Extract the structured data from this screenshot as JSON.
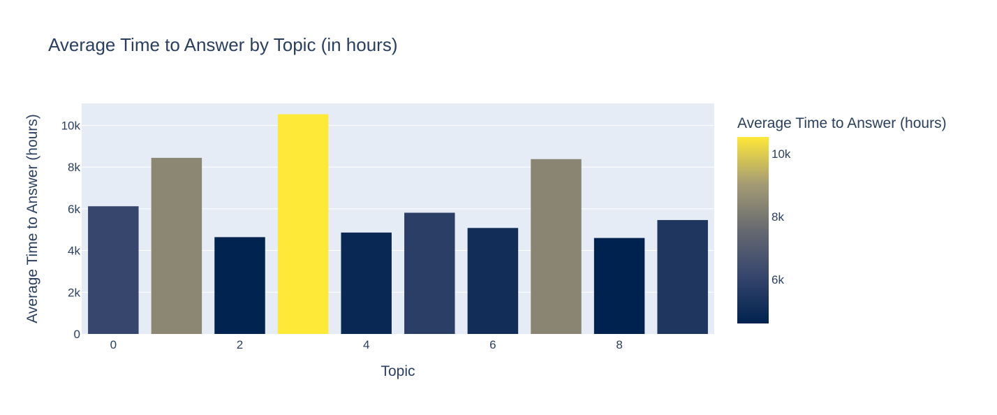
{
  "chart_data": {
    "type": "bar",
    "title": "Average Time to Answer by Topic (in hours)",
    "xlabel": "Topic",
    "ylabel": "Average Time to Answer (hours)",
    "x": [
      0,
      1,
      2,
      3,
      4,
      5,
      6,
      7,
      8,
      9
    ],
    "values": [
      6120,
      8440,
      4640,
      10530,
      4860,
      5810,
      5080,
      8380,
      4600,
      5460
    ],
    "ylim": [
      0,
      11050
    ],
    "xlim": [
      -0.5,
      9.5
    ],
    "x_ticks": [
      0,
      2,
      4,
      6,
      8
    ],
    "x_tick_labels": [
      "0",
      "2",
      "4",
      "6",
      "8"
    ],
    "y_ticks": [
      0,
      2000,
      4000,
      6000,
      8000,
      10000
    ],
    "y_tick_labels": [
      "0",
      "2k",
      "4k",
      "6k",
      "8k",
      "10k"
    ],
    "grid": true,
    "colorscale": "cividis",
    "colorbar": {
      "title": "Average Time to Answer (hours)",
      "range": [
        4600,
        10530
      ],
      "ticks": [
        6000,
        8000,
        10000
      ],
      "tick_labels": [
        "6k",
        "8k",
        "10k"
      ]
    },
    "colors": {
      "plot_bg": "#e5ecf6",
      "grid": "#ffffff",
      "text": "#2a3f5f"
    }
  }
}
